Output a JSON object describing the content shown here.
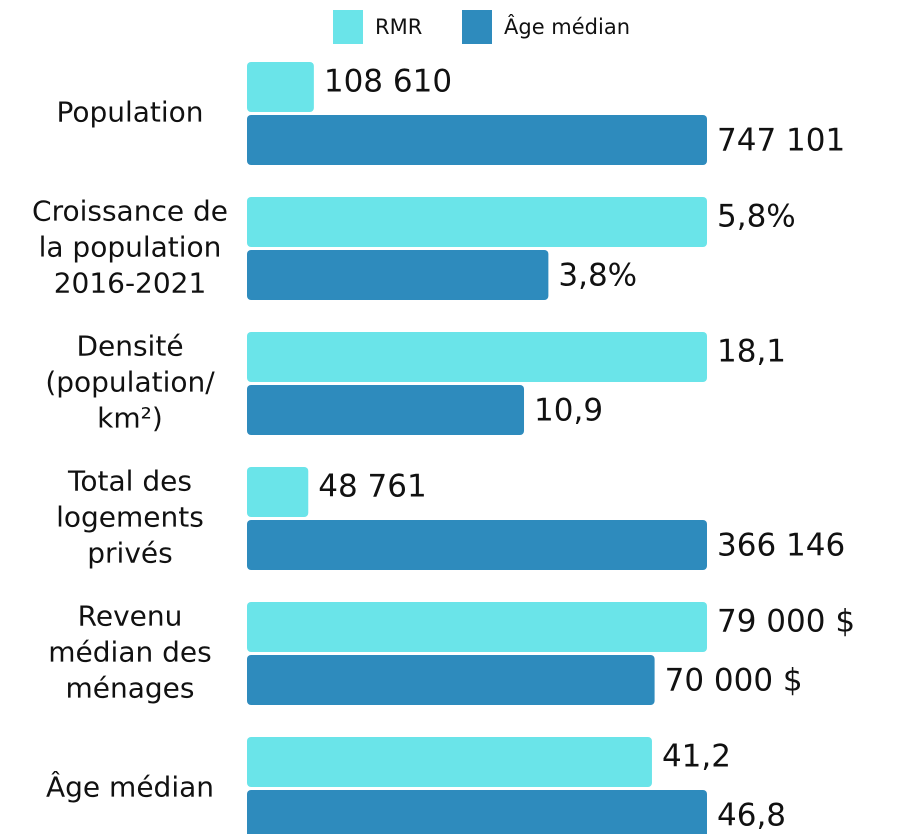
{
  "chart_data": {
    "type": "bar",
    "orientation": "horizontal",
    "categories": [
      "Population",
      "Croissance de\nla population\n2016-2021",
      "Densité\n(population/\nkm²)",
      "Total des\nlogements\nprivés",
      "Revenu\nmédian des\nménages",
      "Âge médian"
    ],
    "series": [
      {
        "name": "RMR",
        "color": "#6ae4e9",
        "values": [
          108610,
          5.8,
          18.1,
          48761,
          79000,
          41.2
        ],
        "value_labels": [
          "108 610",
          "5,8%",
          "18,1",
          "48 761",
          "79 000 $",
          "41,2"
        ]
      },
      {
        "name": "Âge médian",
        "color": "#2e8bbd",
        "values": [
          747101,
          3.8,
          10.9,
          366146,
          70000,
          46.8
        ],
        "value_labels": [
          "747 101",
          "3,8%",
          "10,9",
          "366 146",
          "70 000 $",
          "46,8"
        ]
      }
    ],
    "legend": "top"
  }
}
